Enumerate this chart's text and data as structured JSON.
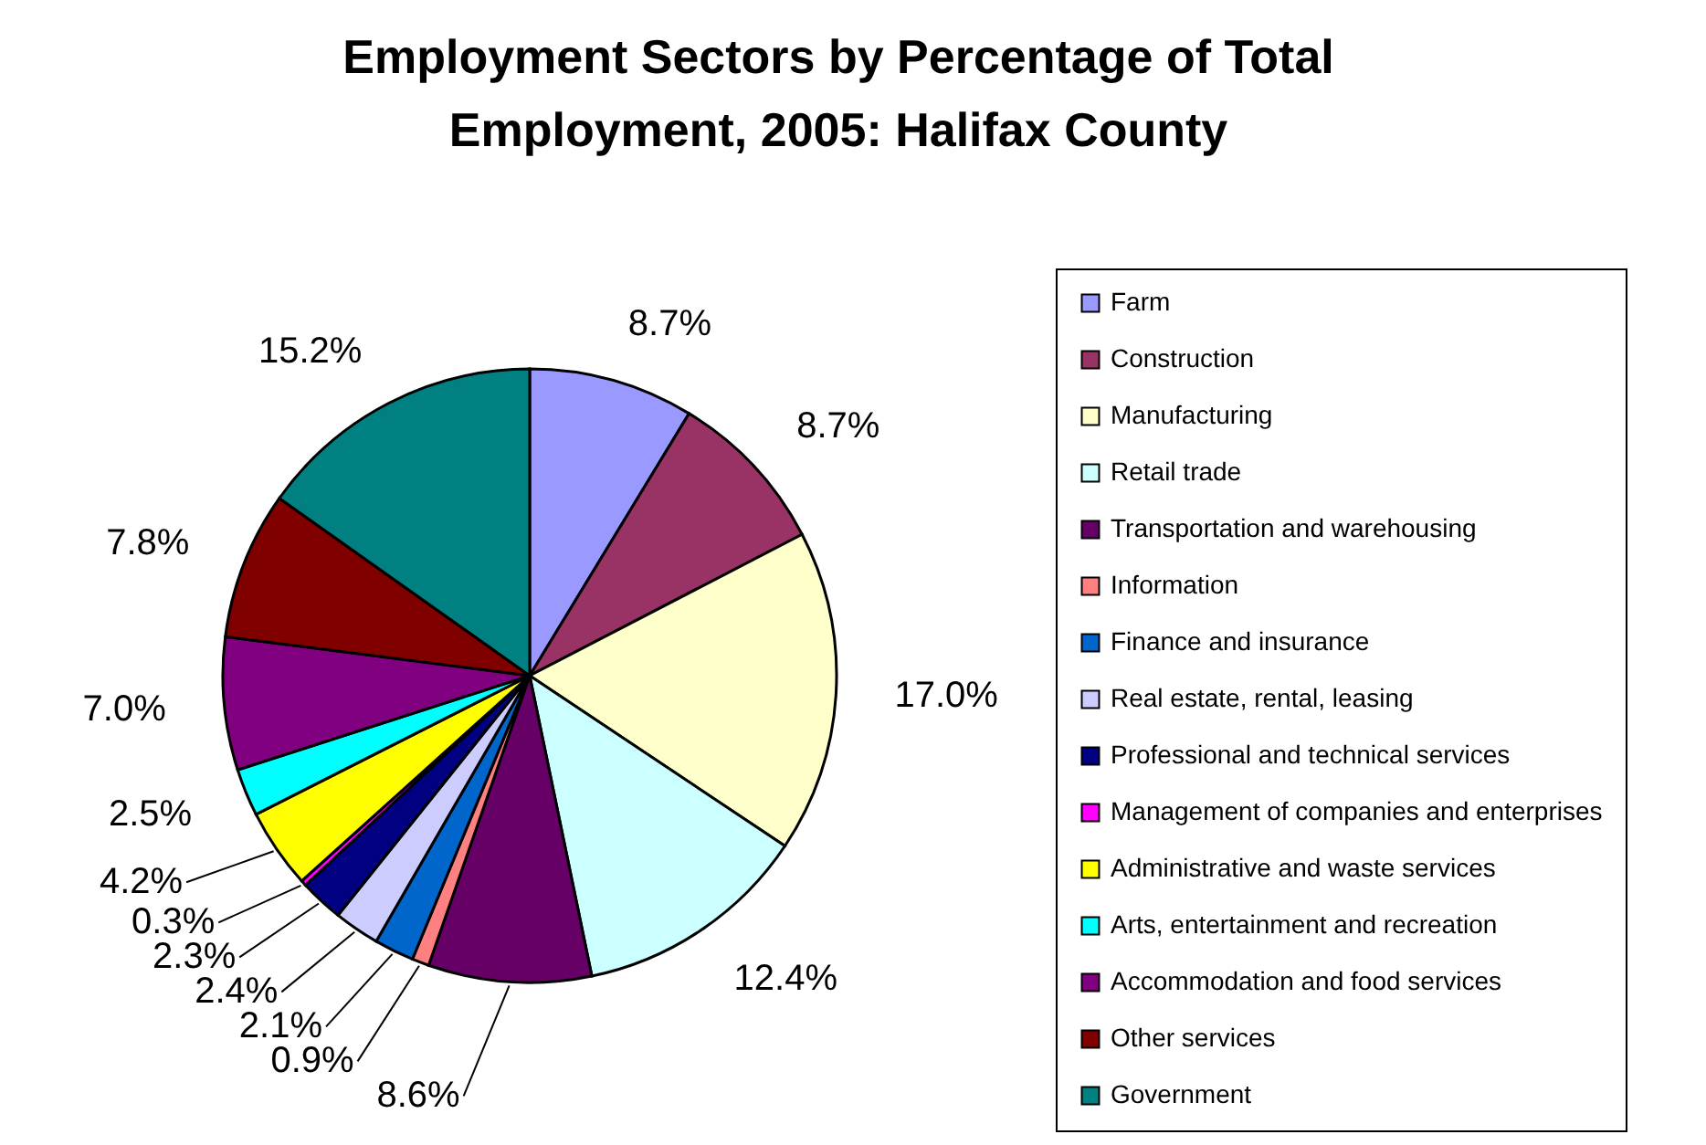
{
  "chart_data": {
    "type": "pie",
    "title": "Employment Sectors by Percentage of Total Employment, 2005:  Halifax County",
    "categories": [
      "Farm",
      "Construction",
      "Manufacturing",
      "Retail trade",
      "Transportation and warehousing",
      "Information",
      "Finance and insurance",
      "Real estate, rental, leasing",
      "Professional and technical services",
      "Management of companies and enterprises",
      "Administrative and waste services",
      "Arts, entertainment and recreation",
      "Accommodation and food services",
      "Other services",
      "Government"
    ],
    "values": [
      8.7,
      8.7,
      17.0,
      12.4,
      8.6,
      0.9,
      2.1,
      2.4,
      2.3,
      0.3,
      4.2,
      2.5,
      7.0,
      7.8,
      15.2
    ],
    "colors": [
      "#9999ff",
      "#993366",
      "#ffffcc",
      "#ccffff",
      "#660066",
      "#ff8080",
      "#0066cc",
      "#ccccff",
      "#000080",
      "#ff00ff",
      "#ffff00",
      "#00ffff",
      "#800080",
      "#800000",
      "#008080"
    ],
    "value_labels": [
      "8.7%",
      "8.7%",
      "17.0%",
      "12.4%",
      "8.6%",
      "0.9%",
      "2.1%",
      "2.4%",
      "2.3%",
      "0.3%",
      "4.2%",
      "2.5%",
      "7.0%",
      "7.8%",
      "15.2%"
    ],
    "legend": "right"
  }
}
